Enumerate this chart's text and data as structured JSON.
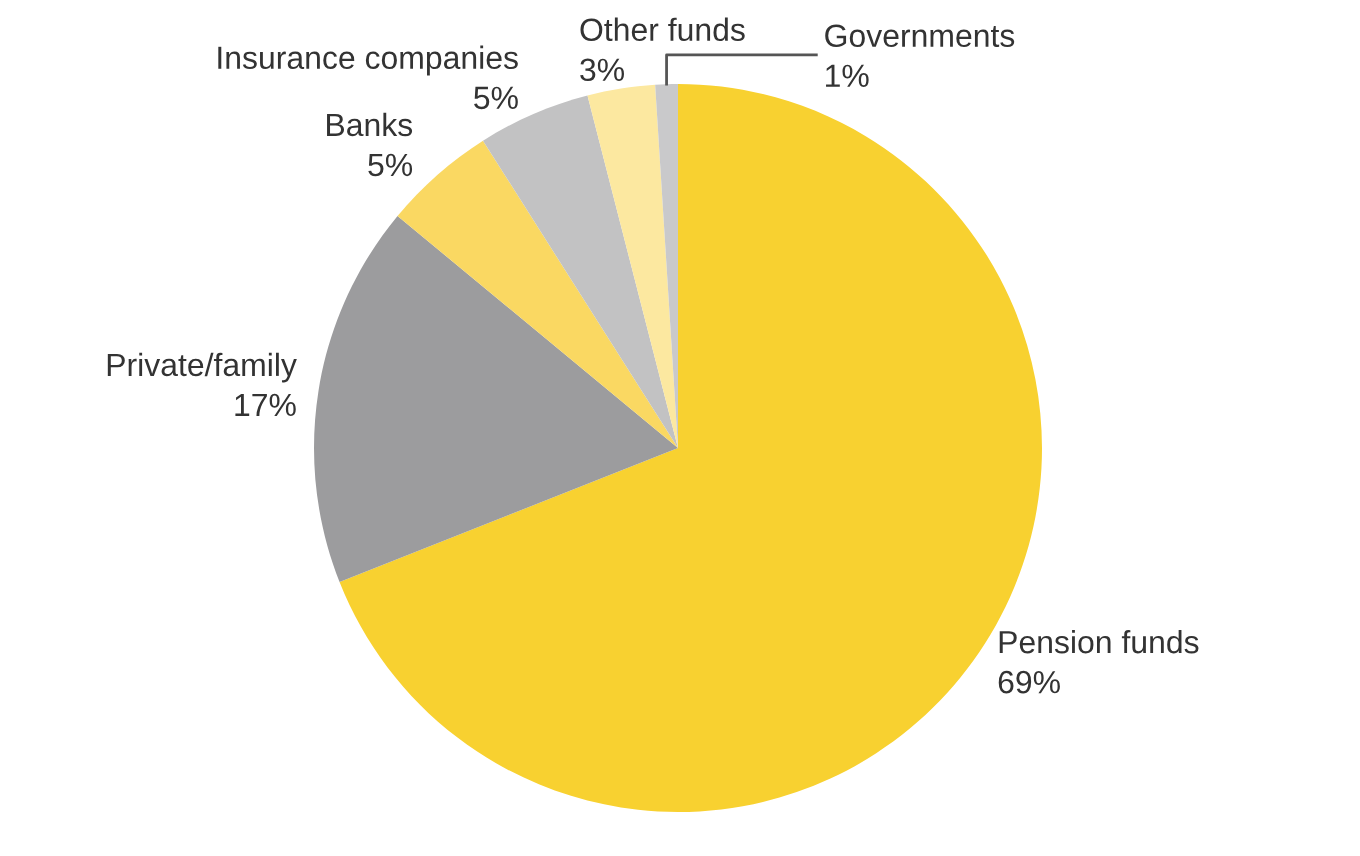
{
  "chart_data": {
    "type": "pie",
    "categories": [
      "Pension funds",
      "Private/family",
      "Banks",
      "Insurance companies",
      "Other funds",
      "Governments"
    ],
    "values": [
      69,
      17,
      5,
      5,
      3,
      1
    ],
    "value_labels": [
      "69%",
      "17%",
      "5%",
      "5%",
      "3%",
      "1%"
    ],
    "colors": [
      "#f8d130",
      "#9c9c9e",
      "#fad862",
      "#c2c2c3",
      "#fce8a0",
      "#c9c9cb"
    ],
    "legend": false
  }
}
